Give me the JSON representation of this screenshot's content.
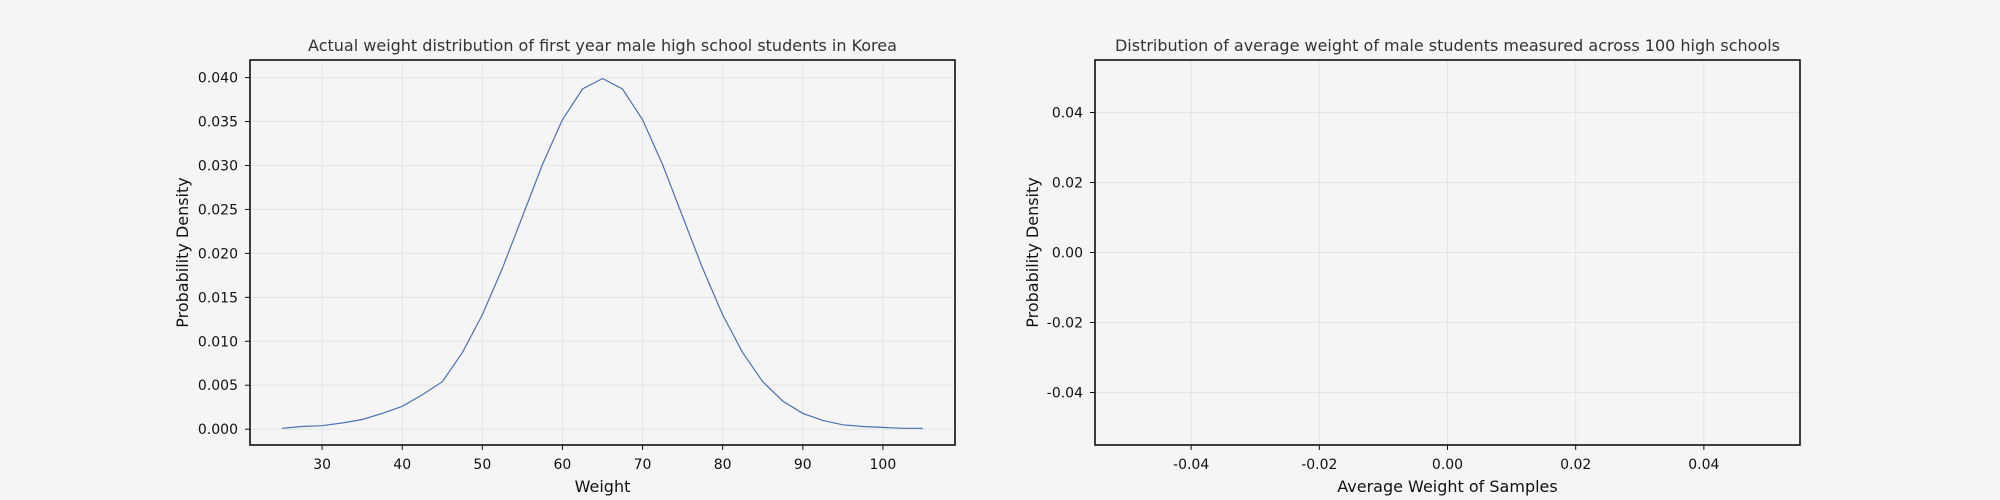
{
  "chart_data": [
    {
      "type": "line",
      "title": "Actual weight distribution of first year male high school students in Korea",
      "xlabel": "Weight",
      "ylabel": "Probability Density",
      "xlim": [
        21,
        109
      ],
      "ylim": [
        -0.0018,
        0.042
      ],
      "xticks": [
        30,
        40,
        50,
        60,
        70,
        80,
        90,
        100
      ],
      "yticks": [
        0.0,
        0.005,
        0.01,
        0.015,
        0.02,
        0.025,
        0.03,
        0.035,
        0.04
      ],
      "x_tick_labels": [
        "30",
        "40",
        "50",
        "60",
        "70",
        "80",
        "90",
        "100"
      ],
      "y_tick_labels": [
        "0.000",
        "0.005",
        "0.010",
        "0.015",
        "0.020",
        "0.025",
        "0.030",
        "0.035",
        "0.040"
      ],
      "grid": true,
      "series": [
        {
          "line_color": "#4c72b0",
          "x": [
            25,
            27.5,
            30,
            32.5,
            35,
            37.5,
            40,
            42.5,
            45,
            47.5,
            50,
            52.5,
            55,
            57.5,
            60,
            62.5,
            65,
            67.5,
            70,
            72.5,
            75,
            77.5,
            80,
            82.5,
            85,
            87.5,
            90,
            92.5,
            95,
            97.5,
            100,
            102.5,
            105
          ],
          "y": [
            0.0001,
            0.0003,
            0.0004,
            0.0007,
            0.0011,
            0.0018,
            0.0026,
            0.0039,
            0.0054,
            0.0087,
            0.013,
            0.0183,
            0.0242,
            0.0301,
            0.0352,
            0.0387,
            0.0399,
            0.0387,
            0.0352,
            0.0301,
            0.0242,
            0.0183,
            0.013,
            0.0087,
            0.0054,
            0.0032,
            0.0018,
            0.001,
            0.0005,
            0.0003,
            0.0002,
            0.0001,
            0.0001
          ]
        }
      ]
    },
    {
      "type": "line",
      "title": "Distribution of average weight of male students measured across 100 high schools",
      "xlabel": "Average Weight of Samples",
      "ylabel": "Probability Density",
      "xlim": [
        -0.055,
        0.055
      ],
      "ylim": [
        -0.055,
        0.055
      ],
      "xticks": [
        -0.04,
        -0.02,
        0.0,
        0.02,
        0.04
      ],
      "yticks": [
        -0.04,
        -0.02,
        0.0,
        0.02,
        0.04
      ],
      "x_tick_labels": [
        "-0.04",
        "-0.02",
        "0.00",
        "0.02",
        "0.04"
      ],
      "y_tick_labels": [
        "-0.04",
        "-0.02",
        "0.00",
        "0.02",
        "0.04"
      ],
      "grid": true,
      "series": []
    }
  ]
}
